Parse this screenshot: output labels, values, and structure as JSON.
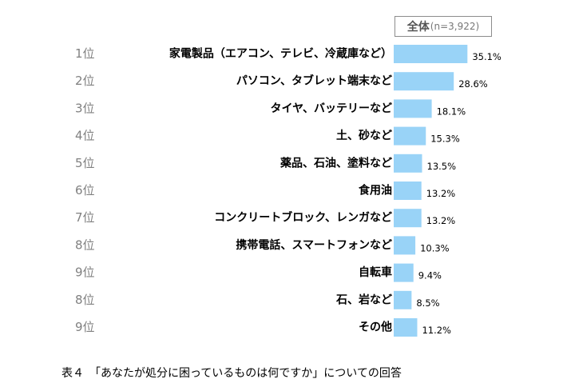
{
  "chart_data": {
    "type": "bar",
    "orientation": "horizontal",
    "ranks": [
      "1位",
      "2位",
      "3位",
      "4位",
      "5位",
      "6位",
      "7位",
      "8位",
      "9位",
      "8位",
      "9位"
    ],
    "categories": [
      "家電製品（エアコン、テレビ、冷蔵庫など）",
      "パソコン、タブレット端末など",
      "タイヤ、バッテリーなど",
      "土、砂など",
      "薬品、石油、塗料など",
      "食用油",
      "コンクリートブロック、レンガなど",
      "携帯電話、スマートフォンなど",
      "自転車",
      "石、岩など",
      "その他"
    ],
    "values": [
      35.1,
      28.6,
      18.1,
      15.3,
      13.5,
      13.2,
      13.2,
      10.3,
      9.4,
      8.5,
      11.2
    ],
    "value_labels": [
      "35.1%",
      "28.6%",
      "18.1%",
      "15.3%",
      "13.5%",
      "13.2%",
      "13.2%",
      "10.3%",
      "9.4%",
      "8.5%",
      "11.2%"
    ],
    "legend": {
      "name": "全体",
      "n": "(n=3,922)"
    },
    "bar_color": "#99d3f7",
    "xlim": [
      0,
      40
    ]
  },
  "caption": "表４　「あなたが処分に困っているものは何ですか」についての回答"
}
